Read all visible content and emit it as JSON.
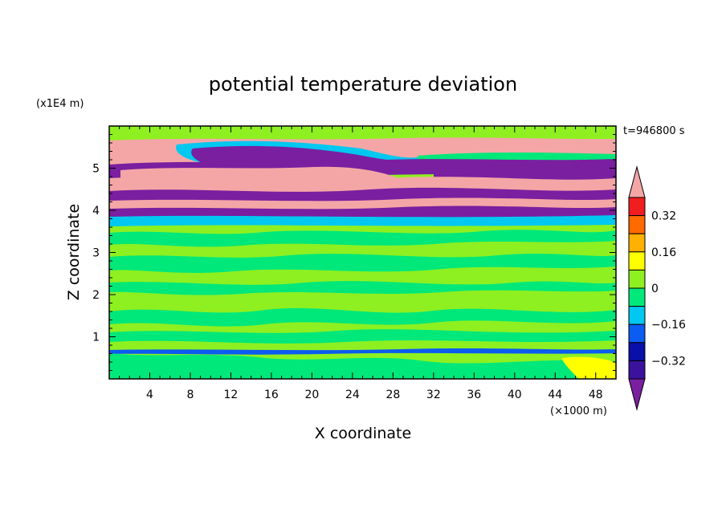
{
  "chart_data": {
    "type": "heatmap",
    "title": "potential temperature deviation",
    "xlabel": "X coordinate",
    "ylabel": "Z coordinate",
    "x_unit": "(×1000 m)",
    "y_unit": "(x1E4 m)",
    "time_label": "t=946800 s",
    "xlim": [
      0,
      50
    ],
    "ylim": [
      0,
      6
    ],
    "x_ticks": [
      "4",
      "8",
      "12",
      "16",
      "20",
      "24",
      "28",
      "32",
      "36",
      "40",
      "44",
      "48"
    ],
    "y_ticks": [
      "1",
      "2",
      "3",
      "4",
      "5"
    ],
    "colorbar": {
      "tick_labels": [
        "0.32",
        "0.16",
        "0",
        "−0.16",
        "−0.32"
      ],
      "levels": [
        -0.4,
        -0.32,
        -0.24,
        -0.16,
        -0.08,
        0,
        0.08,
        0.16,
        0.24,
        0.32,
        0.4
      ],
      "colors": [
        "#7a1fa0",
        "#3a129c",
        "#0a0fa8",
        "#0b5cf0",
        "#00c8f0",
        "#00e87a",
        "#8ef020",
        "#ffff00",
        "#ffb000",
        "#ff6a00",
        "#f01e1e",
        "#f4a6a6"
      ],
      "extend": "both"
    }
  }
}
